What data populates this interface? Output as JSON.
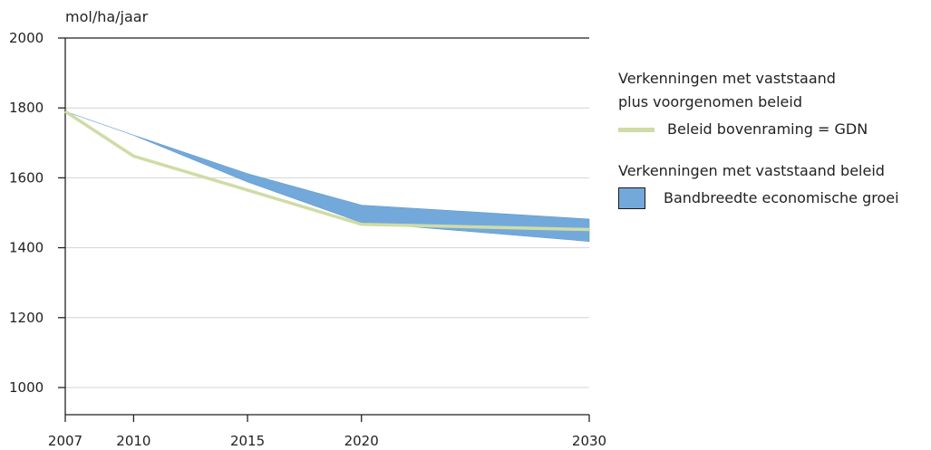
{
  "chart_data": {
    "type": "area",
    "ylabel": "mol/ha/jaar",
    "x": [
      "2007",
      "2010",
      "2015",
      "2020",
      "2030"
    ],
    "ylim": [
      1000,
      2000
    ],
    "yticks": [
      "1000",
      "1200",
      "1400",
      "1600",
      "1800",
      "2000"
    ],
    "grid": true,
    "series": [
      {
        "name": "Beleid bovenraming = GDN",
        "kind": "line",
        "color": "#cfdca6",
        "values": [
          1790,
          1662,
          1565,
          1467,
          1452
        ]
      },
      {
        "name": "Bandbreedte economische groei",
        "kind": "band",
        "color": "#73a9da",
        "upper": [
          1790,
          1722,
          1612,
          1522,
          1482
        ],
        "lower": [
          1790,
          1722,
          1588,
          1472,
          1418
        ]
      }
    ],
    "legend": {
      "placement": "right",
      "groups": [
        {
          "heading_line1": "Verkenningen met vaststaand",
          "heading_line2": "plus voorgenomen beleid",
          "item": "Beleid bovenraming = GDN"
        },
        {
          "heading_line1": "Verkenningen met vaststaand beleid",
          "item": "Bandbreedte economische groei"
        }
      ]
    }
  }
}
